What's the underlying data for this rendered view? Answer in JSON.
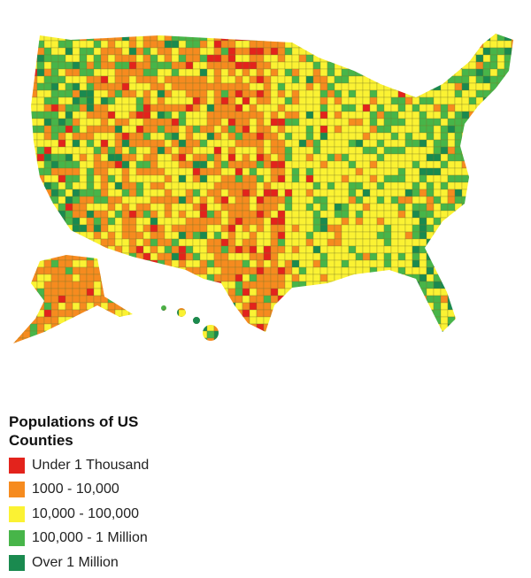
{
  "legend": {
    "title": "Populations of US Counties",
    "items": [
      {
        "label": "Under 1 Thousand",
        "color": "#e3231c"
      },
      {
        "label": "1000 - 10,000",
        "color": "#f68b1f"
      },
      {
        "label": "10,000 - 100,000",
        "color": "#fbf233"
      },
      {
        "label": "100,000 - 1 Million",
        "color": "#47b549"
      },
      {
        "label": "Over 1 Million",
        "color": "#1a8a4f"
      }
    ]
  }
}
